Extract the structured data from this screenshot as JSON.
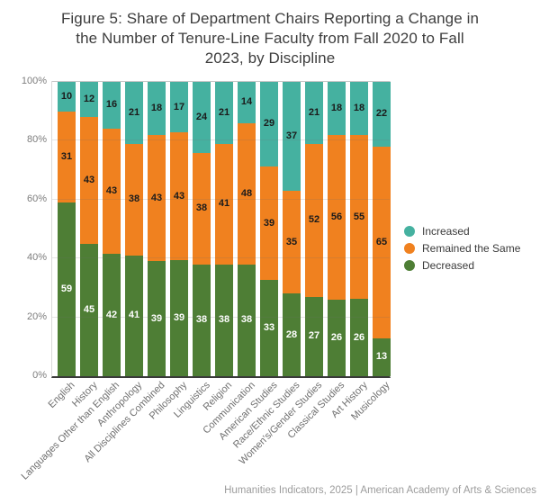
{
  "title": {
    "lines": [
      "Figure 5: Share of Department Chairs Reporting a Change in",
      "the Number of Tenure-Line Faculty from Fall 2020 to Fall",
      "2023, by Discipline"
    ]
  },
  "footer": {
    "text": "Humanities Indicators, 2025 | American Academy of Arts & Sciences"
  },
  "legend": {
    "position": "right",
    "items": [
      {
        "label": "Increased",
        "color": "#45b1a0"
      },
      {
        "label": "Remained the Same",
        "color": "#f0811f"
      },
      {
        "label": "Decreased",
        "color": "#4e7e35"
      }
    ]
  },
  "chart_data": {
    "type": "bar",
    "stacked": true,
    "percent": true,
    "title": "Figure 5: Share of Department Chairs Reporting a Change in the Number of Tenure-Line Faculty from Fall 2020 to Fall 2023, by Discipline",
    "xlabel": "",
    "ylabel": "",
    "ylim": [
      0,
      100
    ],
    "y_ticks": [
      "0%",
      "20%",
      "40%",
      "60%",
      "80%",
      "100%"
    ],
    "grid": true,
    "legend_position": "right",
    "categories": [
      "English",
      "History",
      "Languages Other than English",
      "Anthropology",
      "All Disciplines Combined",
      "Philosophy",
      "Linguistics",
      "Religion",
      "Communication",
      "American Studies",
      "Race/Ethnic Studies",
      "Women's/Gender Studies",
      "Classical Studies",
      "Art History",
      "Musicology"
    ],
    "series": [
      {
        "name": "Decreased",
        "color": "#4e7e35",
        "label_color": "#ffffff",
        "values": [
          59,
          45,
          42,
          41,
          39,
          39,
          38,
          38,
          38,
          33,
          28,
          27,
          26,
          26,
          13
        ]
      },
      {
        "name": "Remained the Same",
        "color": "#f0811f",
        "label_color": "#1b1b1b",
        "values": [
          31,
          43,
          43,
          38,
          43,
          43,
          38,
          41,
          48,
          39,
          35,
          52,
          56,
          55,
          65
        ]
      },
      {
        "name": "Increased",
        "color": "#45b1a0",
        "label_color": "#1b1b1b",
        "values": [
          10,
          12,
          16,
          21,
          18,
          17,
          24,
          21,
          14,
          29,
          37,
          21,
          18,
          18,
          22
        ]
      }
    ]
  }
}
